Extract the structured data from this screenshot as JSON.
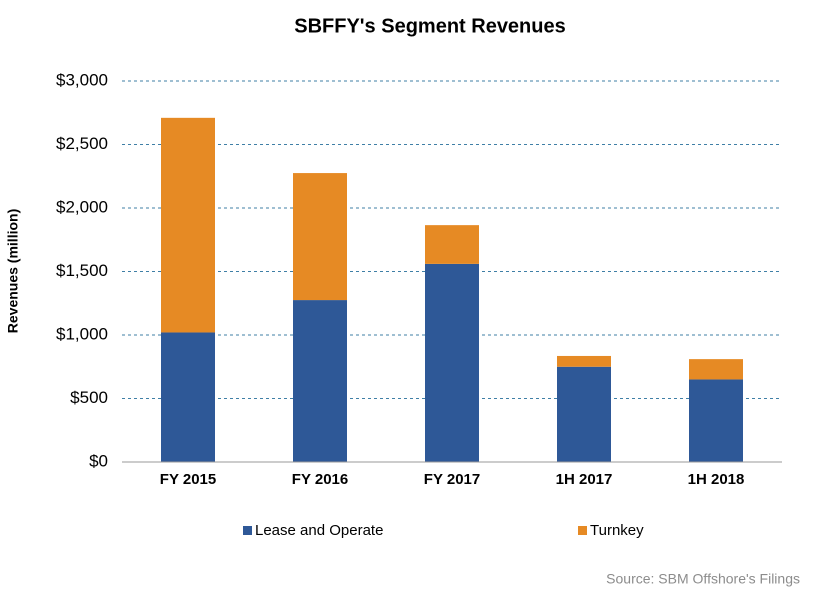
{
  "chart_data": {
    "type": "stacked_bar",
    "title": "SBFFY's Segment Revenues",
    "y_label": "Revenues (million)",
    "source": "Source: SBM Offshore's Filings",
    "categories": [
      "FY 2015",
      "FY 2016",
      "FY 2017",
      "1H 2017",
      "1H 2018"
    ],
    "series": [
      {
        "name": "Lease and Operate",
        "color": "#2e5897",
        "values": [
          1020,
          1275,
          1560,
          750,
          650
        ]
      },
      {
        "name": "Turnkey",
        "color": "#e68a24",
        "values": [
          1690,
          1000,
          305,
          85,
          160
        ]
      }
    ],
    "ylim": [
      0,
      3000
    ],
    "yticks": [
      {
        "value": 0,
        "label": "$0"
      },
      {
        "value": 500,
        "label": "$500"
      },
      {
        "value": 1000,
        "label": "$1,000"
      },
      {
        "value": 1500,
        "label": "$1,500"
      },
      {
        "value": 2000,
        "label": "$2,000"
      },
      {
        "value": 2500,
        "label": "$2,500"
      },
      {
        "value": 3000,
        "label": "$3,000"
      }
    ],
    "grid": true
  }
}
